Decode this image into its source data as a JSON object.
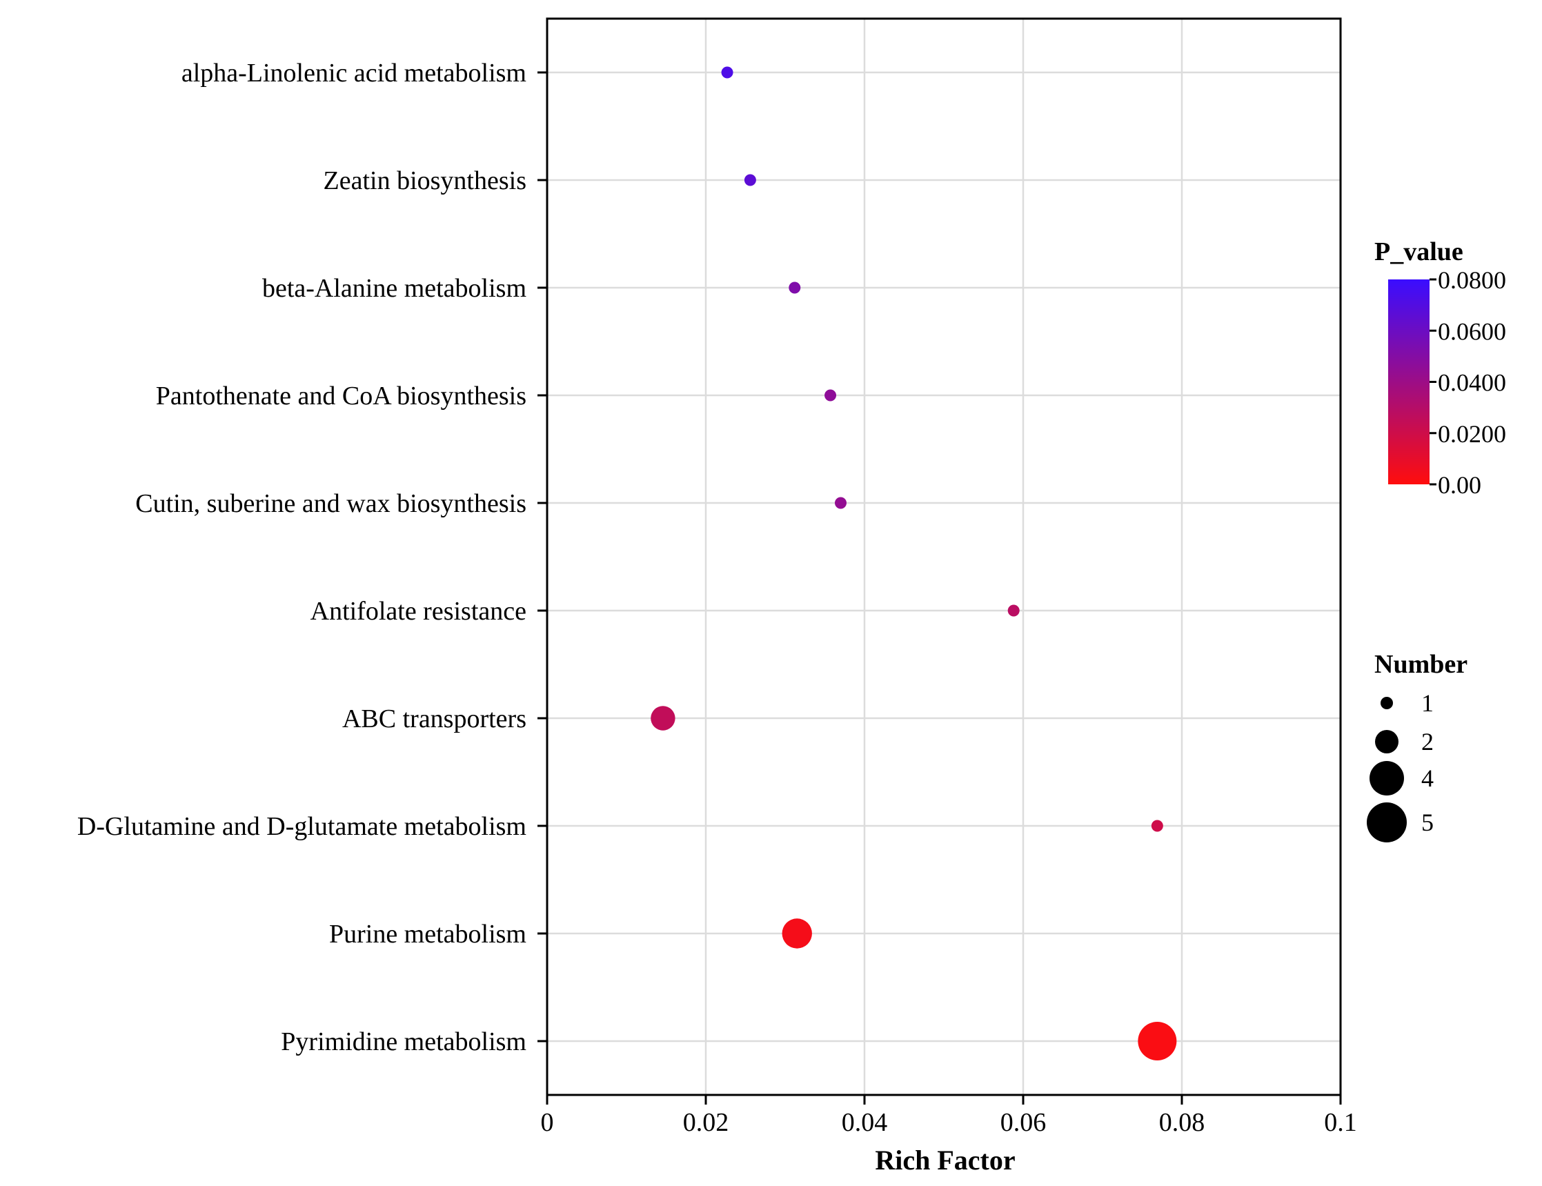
{
  "chart_data": {
    "type": "scatter",
    "title": "",
    "xlabel": "Rich Factor",
    "ylabel": "",
    "xlim": [
      0,
      0.1
    ],
    "x_ticks": [
      "0",
      "0.02",
      "0.04",
      "0.06",
      "0.08",
      "0.1"
    ],
    "grid": true,
    "points": [
      {
        "pathway": "alpha-Linolenic acid metabolism",
        "rich_factor": 0.0227,
        "p_value": 0.072,
        "number": 1
      },
      {
        "pathway": "Zeatin biosynthesis",
        "rich_factor": 0.0256,
        "p_value": 0.066,
        "number": 1
      },
      {
        "pathway": "beta-Alanine metabolism",
        "rich_factor": 0.0312,
        "p_value": 0.052,
        "number": 1
      },
      {
        "pathway": "Pantothenate and CoA biosynthesis",
        "rich_factor": 0.0357,
        "p_value": 0.046,
        "number": 1
      },
      {
        "pathway": "Cutin, suberine and wax biosynthesis",
        "rich_factor": 0.037,
        "p_value": 0.044,
        "number": 1
      },
      {
        "pathway": "Antifolate resistance",
        "rich_factor": 0.0588,
        "p_value": 0.028,
        "number": 1
      },
      {
        "pathway": "ABC transporters",
        "rich_factor": 0.0146,
        "p_value": 0.025,
        "number": 2
      },
      {
        "pathway": "D-Glutamine and D-glutamate metabolism",
        "rich_factor": 0.0769,
        "p_value": 0.02,
        "number": 1
      },
      {
        "pathway": "Purine metabolism",
        "rich_factor": 0.0315,
        "p_value": 0.004,
        "number": 3
      },
      {
        "pathway": "Pyrimidine metabolism",
        "rich_factor": 0.0769,
        "p_value": 0.002,
        "number": 5
      }
    ],
    "color_legend": {
      "title": "P_value",
      "min": 0,
      "max": 0.08,
      "low_color": "#ff0d0d",
      "high_color": "#3a0dff",
      "ticks": [
        {
          "value": 0.08,
          "label": "0.0800"
        },
        {
          "value": 0.06,
          "label": "0.0600"
        },
        {
          "value": 0.04,
          "label": "0.0400"
        },
        {
          "value": 0.02,
          "label": "0.0200"
        },
        {
          "value": 0.0,
          "label": "0.00"
        }
      ]
    },
    "size_legend": {
      "title": "Number",
      "entries": [
        {
          "value": 1,
          "label": "1"
        },
        {
          "value": 2,
          "label": "2"
        },
        {
          "value": 4,
          "label": "4"
        },
        {
          "value": 5,
          "label": "5"
        }
      ]
    }
  }
}
